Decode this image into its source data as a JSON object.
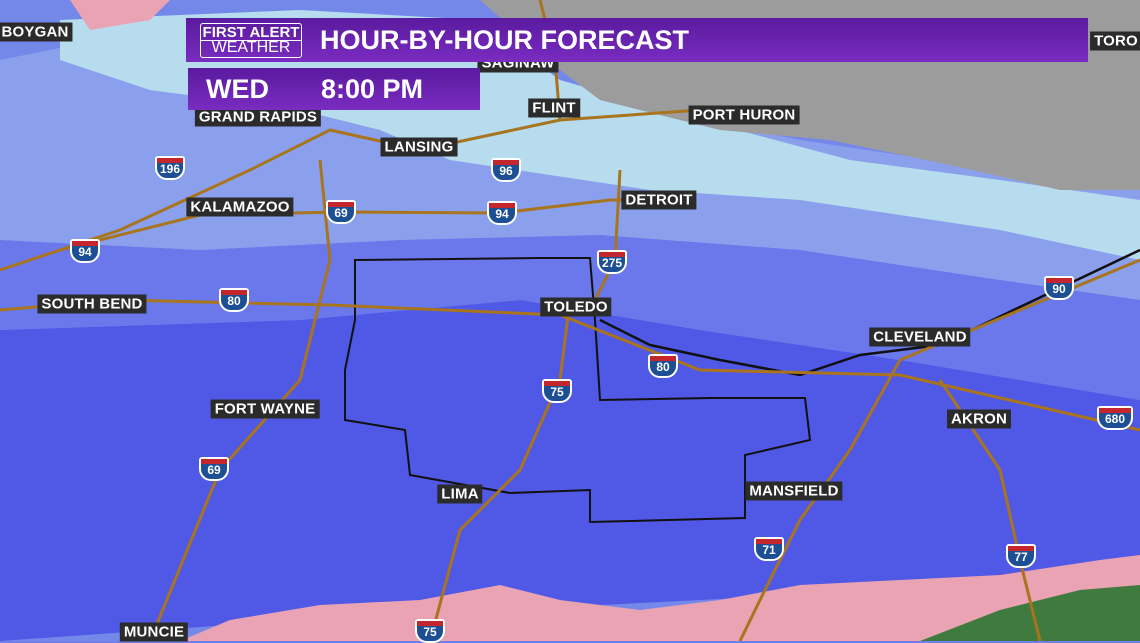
{
  "header": {
    "logo_line1": "FIRST ALERT",
    "logo_line2": "WEATHER",
    "title": "HOUR-BY-HOUR FORECAST",
    "day": "WED",
    "time": "8:00 PM"
  },
  "cities": [
    "BOYGAN",
    "TORO",
    "SAGINAW",
    "GRAND RAPIDS",
    "FLINT",
    "PORT HURON",
    "LANSING",
    "KALAMAZOO",
    "DETROIT",
    "SOUTH BEND",
    "TOLEDO",
    "CLEVELAND",
    "FORT WAYNE",
    "AKRON",
    "LIMA",
    "MANSFIELD",
    "MUNCIE"
  ],
  "shields": [
    "196",
    "96",
    "69",
    "94",
    "94",
    "275",
    "80",
    "90",
    "80",
    "75",
    "680",
    "69",
    "71",
    "77",
    "75"
  ],
  "colors": {
    "banner": "#6a24b0",
    "snow_light": "#a9d3ec",
    "snow_mid": "#8098e8",
    "snow_heavy": "#4a52e0",
    "mix": "#e9a3b3",
    "rain": "#3f7a3f",
    "no_precip": "#9a9a9a",
    "highways": "#a8741e"
  }
}
